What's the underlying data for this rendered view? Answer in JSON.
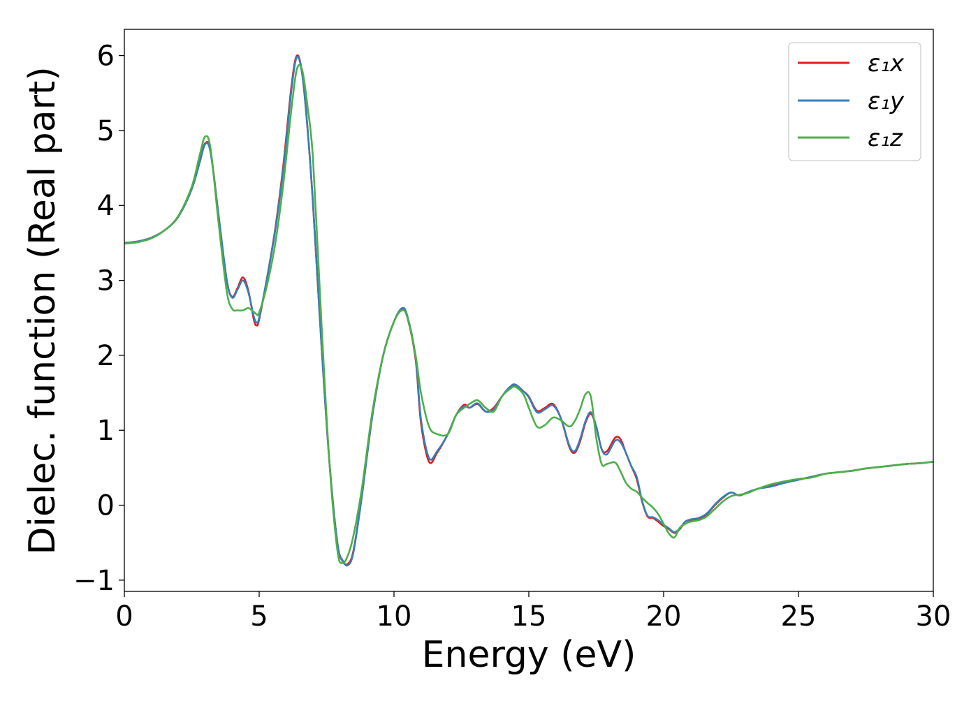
{
  "chart_data": {
    "type": "line",
    "title": "",
    "xlabel": "Energy (eV)",
    "ylabel": "Dielec. function (Real part)",
    "xlim": [
      0,
      30
    ],
    "ylim": [
      -1.15,
      6.35
    ],
    "xticks": [
      0,
      5,
      10,
      15,
      20,
      25,
      30
    ],
    "yticks": [
      -1,
      0,
      1,
      2,
      3,
      4,
      5,
      6
    ],
    "xtick_labels": [
      "0",
      "5",
      "10",
      "15",
      "20",
      "25",
      "30"
    ],
    "ytick_labels": [
      "−1",
      "0",
      "1",
      "2",
      "3",
      "4",
      "5",
      "6"
    ],
    "grid": false,
    "legend_position": "top-right",
    "series": [
      {
        "name": "ε₁x",
        "color": "#e41a1c",
        "x": [
          0,
          0.5,
          1.0,
          1.5,
          2.0,
          2.5,
          2.8,
          3.0,
          3.2,
          3.5,
          3.8,
          4.0,
          4.2,
          4.4,
          4.6,
          4.8,
          4.9,
          5.0,
          5.3,
          5.6,
          5.9,
          6.2,
          6.4,
          6.6,
          6.8,
          7.0,
          7.3,
          7.6,
          7.9,
          8.1,
          8.3,
          8.5,
          8.8,
          9.2,
          9.6,
          10.0,
          10.3,
          10.5,
          10.8,
          11.0,
          11.3,
          11.6,
          12.0,
          12.3,
          12.6,
          12.8,
          13.1,
          13.4,
          13.7,
          14.0,
          14.3,
          14.5,
          14.8,
          15.0,
          15.3,
          15.6,
          15.9,
          16.2,
          16.5,
          16.7,
          16.9,
          17.1,
          17.3,
          17.5,
          17.7,
          17.9,
          18.2,
          18.4,
          18.6,
          18.8,
          19.0,
          19.2,
          19.4,
          19.6,
          19.8,
          20.0,
          20.2,
          20.4,
          20.6,
          20.8,
          21.0,
          21.3,
          21.6,
          21.9,
          22.2,
          22.5,
          22.8,
          23.1,
          23.5,
          24.0,
          24.5,
          25.0,
          25.5,
          26.0,
          26.5,
          27.0,
          27.5,
          28.0,
          28.5,
          29.0,
          29.5,
          30.0
        ],
        "y": [
          3.5,
          3.52,
          3.57,
          3.67,
          3.85,
          4.22,
          4.6,
          4.83,
          4.72,
          3.85,
          3.0,
          2.78,
          2.9,
          3.04,
          2.86,
          2.48,
          2.4,
          2.48,
          3.05,
          3.7,
          4.55,
          5.6,
          6.0,
          5.75,
          5.0,
          4.0,
          2.2,
          0.6,
          -0.5,
          -0.75,
          -0.78,
          -0.6,
          0.1,
          1.2,
          2.0,
          2.45,
          2.62,
          2.5,
          1.95,
          1.1,
          0.58,
          0.7,
          0.95,
          1.2,
          1.34,
          1.3,
          1.35,
          1.25,
          1.3,
          1.45,
          1.57,
          1.6,
          1.52,
          1.45,
          1.26,
          1.3,
          1.35,
          1.15,
          0.78,
          0.7,
          0.85,
          1.1,
          1.22,
          1.05,
          0.75,
          0.72,
          0.9,
          0.88,
          0.7,
          0.52,
          0.35,
          0.05,
          -0.15,
          -0.17,
          -0.22,
          -0.28,
          -0.32,
          -0.37,
          -0.32,
          -0.22,
          -0.2,
          -0.18,
          -0.12,
          0.0,
          0.1,
          0.17,
          0.13,
          0.17,
          0.22,
          0.26,
          0.3,
          0.34,
          0.38,
          0.42,
          0.44,
          0.46,
          0.49,
          0.51,
          0.53,
          0.55,
          0.56,
          0.58
        ]
      },
      {
        "name": "ε₁y",
        "color": "#377eb8",
        "x": [
          0,
          0.5,
          1.0,
          1.5,
          2.0,
          2.5,
          2.8,
          3.0,
          3.2,
          3.5,
          3.8,
          4.0,
          4.2,
          4.4,
          4.6,
          4.8,
          4.9,
          5.0,
          5.3,
          5.6,
          5.9,
          6.2,
          6.4,
          6.6,
          6.8,
          7.0,
          7.3,
          7.6,
          7.9,
          8.1,
          8.3,
          8.5,
          8.8,
          9.2,
          9.6,
          10.0,
          10.3,
          10.5,
          10.8,
          11.0,
          11.3,
          11.6,
          12.0,
          12.3,
          12.6,
          12.8,
          13.1,
          13.4,
          13.7,
          14.0,
          14.3,
          14.5,
          14.8,
          15.0,
          15.3,
          15.6,
          15.9,
          16.2,
          16.5,
          16.7,
          16.9,
          17.1,
          17.3,
          17.5,
          17.7,
          17.9,
          18.2,
          18.4,
          18.6,
          18.8,
          19.0,
          19.2,
          19.4,
          19.6,
          19.8,
          20.0,
          20.2,
          20.4,
          20.6,
          20.8,
          21.0,
          21.3,
          21.6,
          21.9,
          22.2,
          22.5,
          22.8,
          23.1,
          23.5,
          24.0,
          24.5,
          25.0,
          25.5,
          26.0,
          26.5,
          27.0,
          27.5,
          28.0,
          28.5,
          29.0,
          29.5,
          30.0
        ],
        "y": [
          3.5,
          3.52,
          3.57,
          3.67,
          3.85,
          4.22,
          4.58,
          4.82,
          4.7,
          3.85,
          3.0,
          2.77,
          2.88,
          3.0,
          2.84,
          2.52,
          2.44,
          2.5,
          3.05,
          3.68,
          4.5,
          5.55,
          5.98,
          5.74,
          5.0,
          4.0,
          2.2,
          0.6,
          -0.5,
          -0.74,
          -0.8,
          -0.62,
          0.1,
          1.2,
          2.0,
          2.45,
          2.63,
          2.52,
          1.98,
          1.15,
          0.63,
          0.72,
          0.95,
          1.2,
          1.32,
          1.3,
          1.36,
          1.25,
          1.28,
          1.45,
          1.58,
          1.61,
          1.52,
          1.44,
          1.24,
          1.28,
          1.33,
          1.15,
          0.8,
          0.72,
          0.88,
          1.12,
          1.24,
          1.05,
          0.75,
          0.68,
          0.86,
          0.84,
          0.7,
          0.52,
          0.38,
          0.06,
          -0.14,
          -0.16,
          -0.2,
          -0.26,
          -0.31,
          -0.36,
          -0.31,
          -0.22,
          -0.19,
          -0.17,
          -0.11,
          0.01,
          0.11,
          0.17,
          0.13,
          0.17,
          0.22,
          0.25,
          0.3,
          0.34,
          0.38,
          0.42,
          0.44,
          0.46,
          0.49,
          0.51,
          0.53,
          0.55,
          0.56,
          0.58
        ]
      },
      {
        "name": "ε₁z",
        "color": "#4daf4a",
        "x": [
          0,
          0.5,
          1.0,
          1.5,
          2.0,
          2.5,
          2.8,
          3.0,
          3.2,
          3.5,
          3.8,
          4.0,
          4.2,
          4.4,
          4.6,
          4.8,
          4.9,
          5.0,
          5.3,
          5.6,
          5.9,
          6.2,
          6.4,
          6.6,
          6.8,
          7.0,
          7.3,
          7.6,
          7.9,
          8.1,
          8.3,
          8.5,
          8.8,
          9.2,
          9.6,
          10.0,
          10.3,
          10.5,
          10.8,
          11.0,
          11.3,
          11.6,
          12.0,
          12.3,
          12.6,
          12.8,
          13.1,
          13.4,
          13.7,
          14.0,
          14.3,
          14.5,
          14.8,
          15.0,
          15.3,
          15.6,
          15.9,
          16.2,
          16.5,
          16.7,
          16.9,
          17.1,
          17.3,
          17.5,
          17.7,
          17.9,
          18.2,
          18.4,
          18.6,
          18.8,
          19.0,
          19.2,
          19.4,
          19.6,
          19.8,
          20.0,
          20.2,
          20.4,
          20.6,
          20.8,
          21.0,
          21.3,
          21.6,
          21.9,
          22.2,
          22.5,
          22.8,
          23.1,
          23.5,
          24.0,
          24.5,
          25.0,
          25.5,
          26.0,
          26.5,
          27.0,
          27.5,
          28.0,
          28.5,
          29.0,
          29.5,
          30.0
        ],
        "y": [
          3.49,
          3.51,
          3.56,
          3.67,
          3.86,
          4.25,
          4.68,
          4.92,
          4.75,
          3.75,
          2.85,
          2.62,
          2.6,
          2.6,
          2.63,
          2.58,
          2.55,
          2.57,
          2.95,
          3.5,
          4.3,
          5.3,
          5.82,
          5.8,
          5.3,
          4.6,
          2.5,
          0.6,
          -0.6,
          -0.77,
          -0.66,
          -0.4,
          0.2,
          1.25,
          2.0,
          2.45,
          2.6,
          2.5,
          2.0,
          1.5,
          1.05,
          0.95,
          0.95,
          1.2,
          1.3,
          1.35,
          1.4,
          1.3,
          1.25,
          1.45,
          1.55,
          1.58,
          1.48,
          1.3,
          1.05,
          1.07,
          1.17,
          1.13,
          1.05,
          1.12,
          1.28,
          1.48,
          1.45,
          0.9,
          0.55,
          0.55,
          0.57,
          0.45,
          0.3,
          0.22,
          0.18,
          0.1,
          0.03,
          -0.03,
          -0.12,
          -0.25,
          -0.38,
          -0.43,
          -0.3,
          -0.25,
          -0.22,
          -0.2,
          -0.15,
          -0.05,
          0.05,
          0.12,
          0.14,
          0.16,
          0.22,
          0.28,
          0.32,
          0.35,
          0.37,
          0.42,
          0.44,
          0.46,
          0.49,
          0.51,
          0.53,
          0.55,
          0.56,
          0.58
        ]
      }
    ]
  }
}
